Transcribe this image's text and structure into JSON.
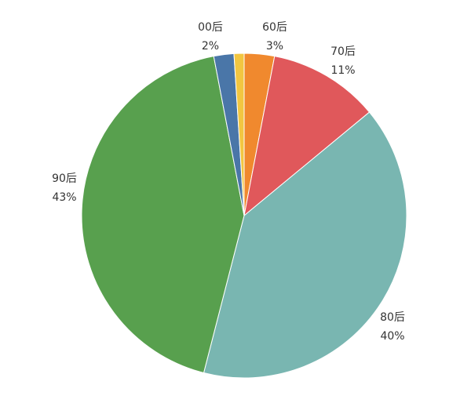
{
  "chart_data": {
    "type": "pie",
    "categories": [
      "60后",
      "70后",
      "80后",
      "90后",
      "00后",
      null
    ],
    "values": [
      3,
      11,
      40,
      43,
      2,
      1
    ],
    "value_labels": [
      "3%",
      "11%",
      "40%",
      "43%",
      "2%",
      null
    ],
    "colors": [
      "#f0892e",
      "#e0585b",
      "#79b6b1",
      "#58a04e",
      "#4a76a8",
      "#f2c641"
    ]
  }
}
